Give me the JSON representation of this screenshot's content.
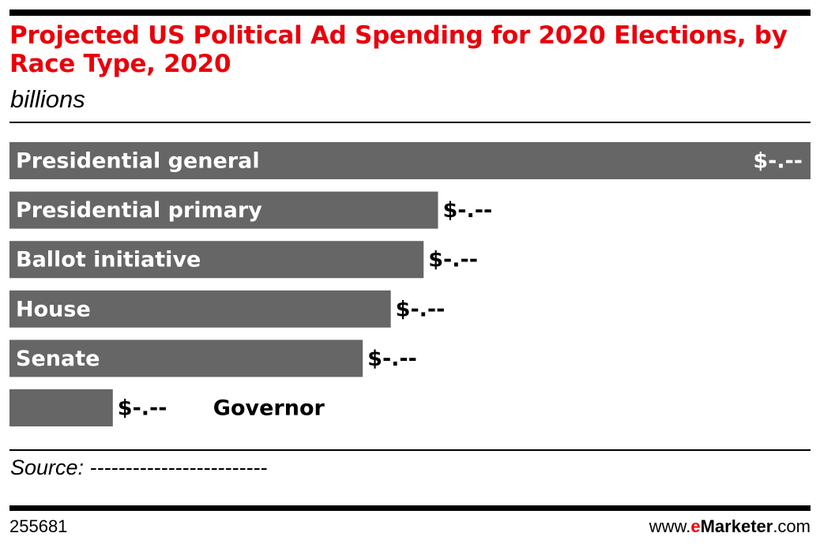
{
  "chart_data": {
    "type": "bar",
    "orientation": "horizontal",
    "title": "Projected US Political Ad Spending for 2020 Elections, by Race Type, 2020",
    "subtitle": "billions",
    "categories": [
      "Presidential general",
      "Presidential primary",
      "Ballot initiative",
      "House",
      "Senate",
      "Governor"
    ],
    "values": [
      1.0,
      0.535,
      0.517,
      0.476,
      0.441,
      0.129
    ],
    "value_labels": [
      "$-.--",
      "$-.--",
      "$-.--",
      "$-.--",
      "$-.--",
      "$-.--"
    ],
    "value_unit_note": "bar lengths relative to largest bar; printed values are masked",
    "bar_color": "#666666",
    "grid": false,
    "legend": "none"
  },
  "footer": {
    "source": "Source: -------------------------",
    "chart_id": "255681",
    "brand_prefix": "www.",
    "brand_e": "e",
    "brand_name": "Marketer",
    "brand_suffix": ".com"
  },
  "colors": {
    "title": "#e8000b",
    "bar": "#666666",
    "rule": "#000000"
  }
}
